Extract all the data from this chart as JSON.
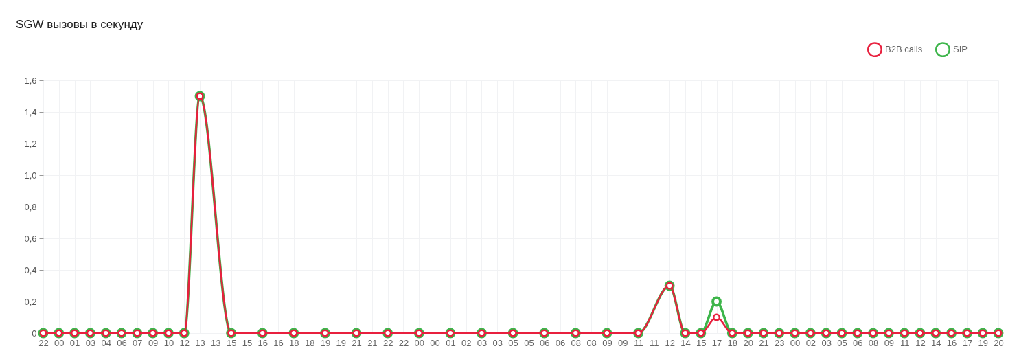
{
  "chart_data": {
    "type": "line",
    "title": "SGW вызовы в секунду",
    "categories": [
      "22",
      "00",
      "01",
      "03",
      "04",
      "06",
      "07",
      "09",
      "10",
      "12",
      "13",
      "13",
      "15",
      "15",
      "16",
      "16",
      "18",
      "18",
      "19",
      "19",
      "21",
      "21",
      "22",
      "22",
      "00",
      "00",
      "01",
      "02",
      "03",
      "03",
      "05",
      "05",
      "06",
      "06",
      "08",
      "08",
      "09",
      "09",
      "11",
      "11",
      "12",
      "14",
      "15",
      "17",
      "18",
      "20",
      "21",
      "23",
      "00",
      "02",
      "03",
      "05",
      "06",
      "08",
      "09",
      "11",
      "12",
      "14",
      "16",
      "17",
      "19",
      "20"
    ],
    "series": [
      {
        "name": "B2B calls",
        "color": "#e8203e",
        "values": [
          0,
          0,
          0,
          0,
          0,
          0,
          0,
          0,
          0,
          0,
          1.5,
          null,
          0,
          null,
          0,
          null,
          0,
          null,
          0,
          null,
          0,
          null,
          0,
          null,
          0,
          null,
          0,
          null,
          0,
          null,
          0,
          null,
          0,
          null,
          0,
          null,
          0,
          null,
          0,
          null,
          0.3,
          0,
          0,
          0.1,
          0,
          0,
          0,
          0,
          0,
          0,
          0,
          0,
          0,
          0,
          0,
          0,
          0,
          0,
          0,
          0,
          0,
          0
        ]
      },
      {
        "name": "SIP",
        "color": "#3db54a",
        "values": [
          0,
          0,
          0,
          0,
          0,
          0,
          0,
          0,
          0,
          0,
          1.5,
          null,
          0,
          null,
          0,
          null,
          0,
          null,
          0,
          null,
          0,
          null,
          0,
          null,
          0,
          null,
          0,
          null,
          0,
          null,
          0,
          null,
          0,
          null,
          0,
          null,
          0,
          null,
          0,
          null,
          0.3,
          0,
          0,
          0.2,
          0,
          0,
          0,
          0,
          0,
          0,
          0,
          0,
          0,
          0,
          0,
          0,
          0,
          0,
          0,
          0,
          0,
          0
        ]
      }
    ],
    "ylim": [
      0,
      1.6
    ],
    "yticks": [
      0,
      {
        "value": 0.2,
        "label": "0,2"
      },
      {
        "value": 0.4,
        "label": "0,4"
      },
      {
        "value": 0.6,
        "label": "0,6"
      },
      {
        "value": 0.8,
        "label": "0,8"
      },
      {
        "value": 1.0,
        "label": "1,0"
      },
      {
        "value": 1.2,
        "label": "1,2"
      },
      {
        "value": 1.4,
        "label": "1,4"
      },
      {
        "value": 1.6,
        "label": "1,6"
      }
    ],
    "grid": true,
    "legend": "top right",
    "marker": "circle",
    "line_style": "solid"
  }
}
